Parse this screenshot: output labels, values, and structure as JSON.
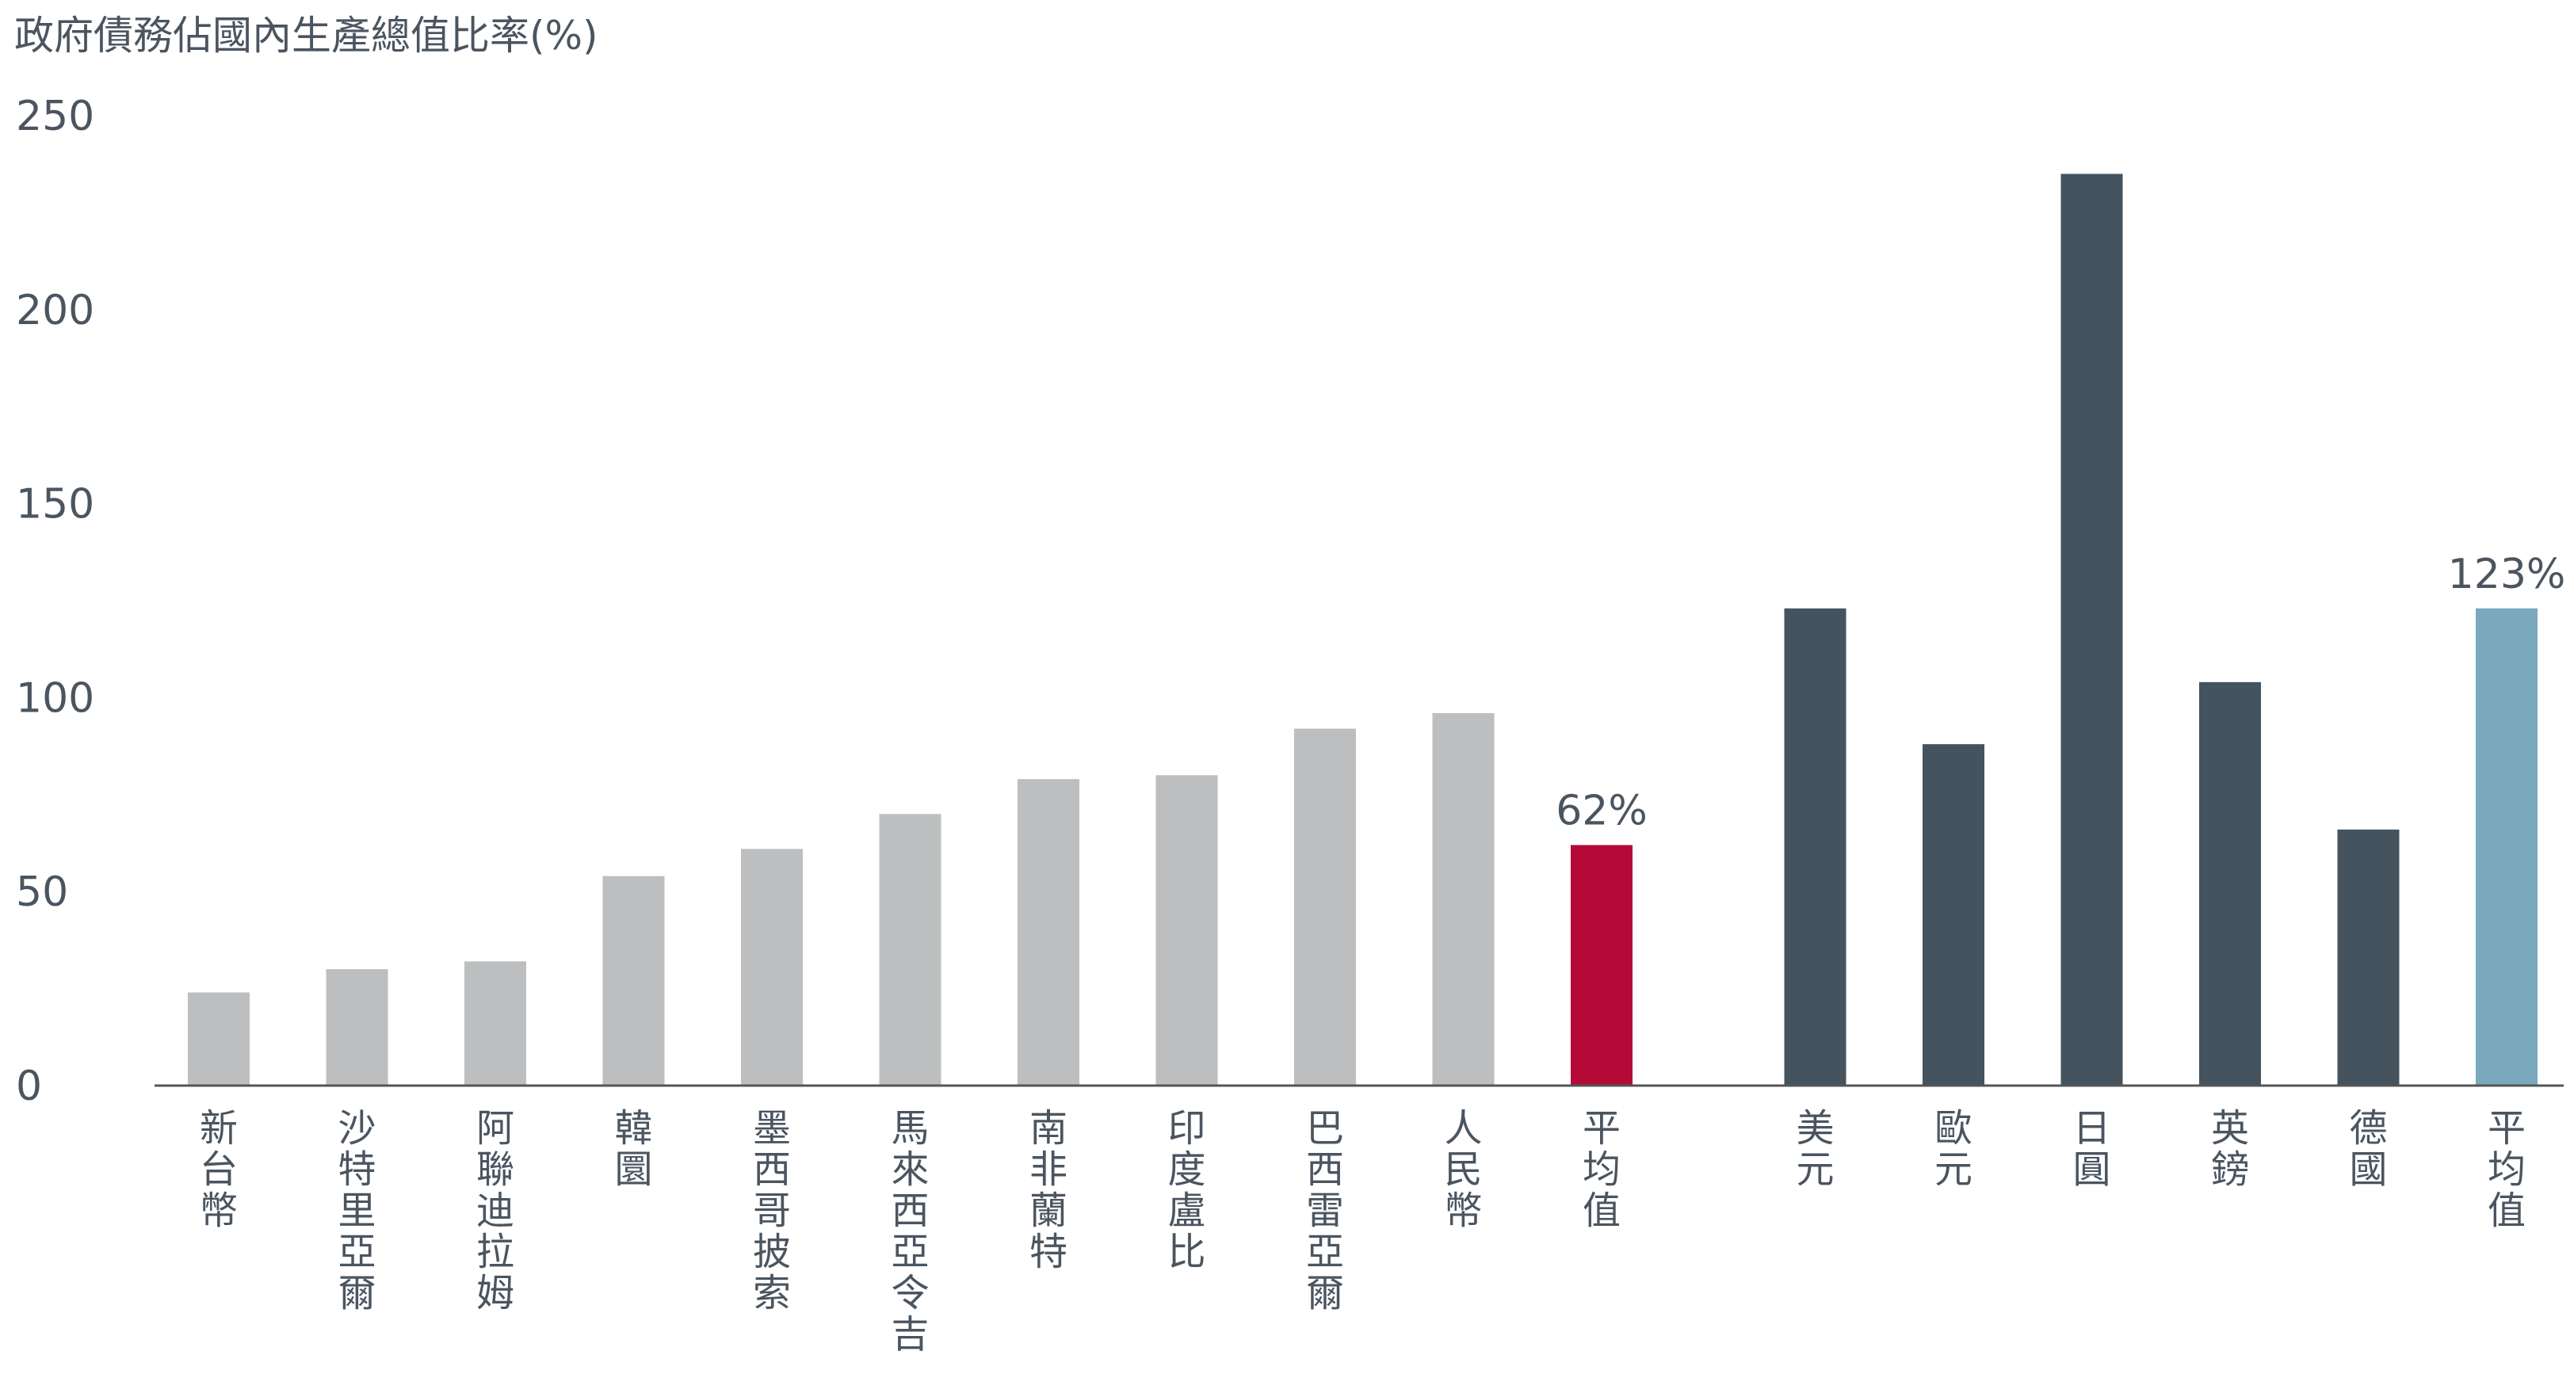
{
  "chart_data": {
    "type": "bar",
    "title": "政府債務佔國內生產總值比率(%)",
    "xlabel": "",
    "ylabel": "",
    "ylim": [
      0,
      250
    ],
    "yticks": [
      0,
      50,
      100,
      150,
      200,
      250
    ],
    "grid": false,
    "legend": "none",
    "categories": [
      "新台幣",
      "沙特里亞爾",
      "阿聯迪拉姆",
      "韓圜",
      "墨西哥披索",
      "馬來西亞令吉",
      "南非蘭特",
      "印度盧比",
      "巴西雷亞爾",
      "人民幣",
      "平均值",
      "美元",
      "歐元",
      "日圓",
      "英鎊",
      "德國",
      "平均值"
    ],
    "values": [
      24,
      30,
      32,
      54,
      61,
      70,
      79,
      80,
      92,
      96,
      62,
      123,
      88,
      235,
      104,
      66,
      123
    ],
    "groups": [
      1,
      1,
      1,
      1,
      1,
      1,
      1,
      1,
      1,
      1,
      1,
      2,
      2,
      2,
      2,
      2,
      2
    ],
    "bar_colors": [
      "#bdbec0",
      "#bdbec0",
      "#bdbec0",
      "#bdbec0",
      "#bdbec0",
      "#bdbec0",
      "#bdbec0",
      "#bdbec0",
      "#bdbec0",
      "#bdbec0",
      "#b50938",
      "#44535e",
      "#44535e",
      "#44535e",
      "#44535e",
      "#44535e",
      "#7aa8bd"
    ],
    "data_labels": [
      "",
      "",
      "",
      "",
      "",
      "",
      "",
      "",
      "",
      "",
      "62%",
      "",
      "",
      "",
      "",
      "",
      "123%"
    ]
  },
  "colors": {
    "text": "#4a5560",
    "axis": "#555555"
  }
}
